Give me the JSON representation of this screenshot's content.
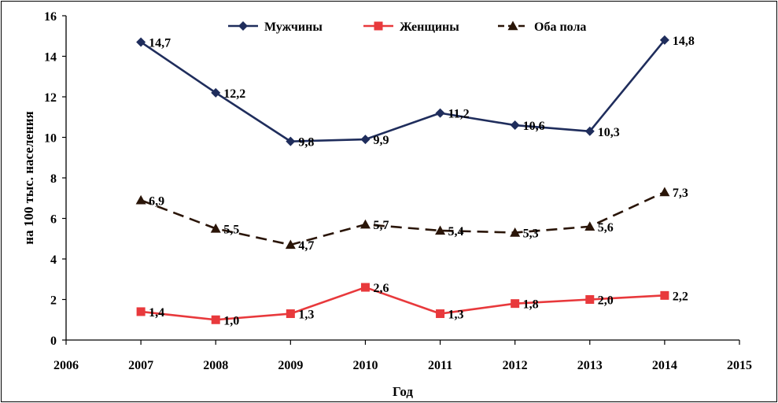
{
  "chart_data": {
    "type": "line",
    "title": "",
    "xlabel": "Год",
    "ylabel": "на 100 тыс. населения",
    "xlim": [
      2006,
      2015
    ],
    "ylim": [
      0,
      16
    ],
    "x_ticks": [
      "2006",
      "2007",
      "2008",
      "2009",
      "2010",
      "2011",
      "2012",
      "2013",
      "2014",
      "2015"
    ],
    "y_ticks": [
      "0",
      "2",
      "4",
      "6",
      "8",
      "10",
      "12",
      "14",
      "16"
    ],
    "x": [
      2007,
      2008,
      2009,
      2010,
      2011,
      2012,
      2013,
      2014
    ],
    "grid": false,
    "legend_position": "top",
    "series": [
      {
        "name": "Мужчины",
        "color": "#1f2d5c",
        "marker": "diamond",
        "line_style": "solid",
        "values": [
          14.7,
          12.2,
          9.8,
          9.9,
          11.2,
          10.6,
          10.3,
          14.8
        ],
        "labels": [
          "14,7",
          "12,2",
          "9,8",
          "9,9",
          "11,2",
          "10,6",
          "10,3",
          "14,8"
        ]
      },
      {
        "name": "Женщины",
        "color": "#e8393c",
        "marker": "square",
        "line_style": "solid",
        "values": [
          1.4,
          1.0,
          1.3,
          2.6,
          1.3,
          1.8,
          2.0,
          2.2
        ],
        "labels": [
          "1,4",
          "1,0",
          "1,3",
          "2,6",
          "1,3",
          "1,8",
          "2,0",
          "2,2"
        ]
      },
      {
        "name": "Оба пола",
        "color": "#2a1508",
        "marker": "triangle",
        "line_style": "dashed",
        "values": [
          6.9,
          5.5,
          4.7,
          5.7,
          5.4,
          5.3,
          5.6,
          7.3
        ],
        "labels": [
          "6,9",
          "5,5",
          "4,7",
          "5,7",
          "5,4",
          "5,3",
          "5,6",
          "7,3"
        ]
      }
    ]
  }
}
